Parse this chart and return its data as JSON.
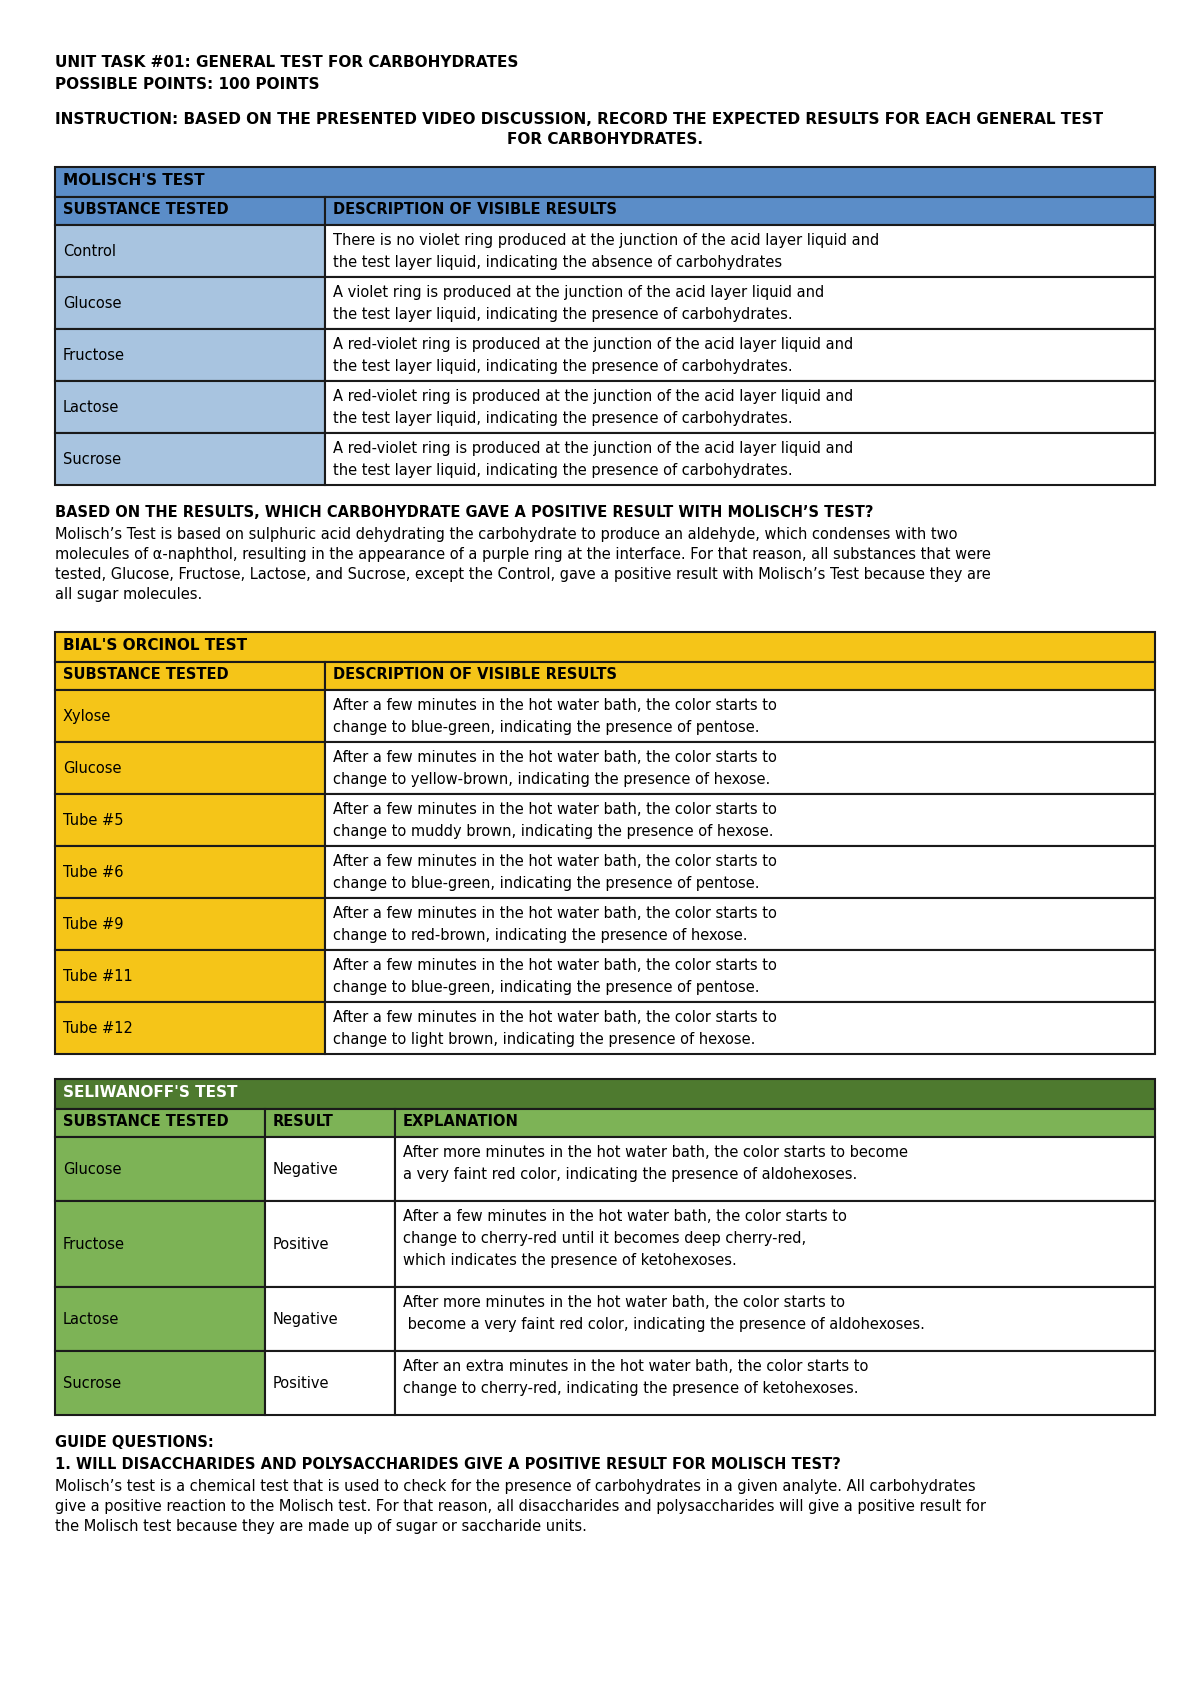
{
  "title1": "UNIT TASK #01: GENERAL TEST FOR CARBOHYDRATES",
  "title2": "POSSIBLE POINTS: 100 POINTS",
  "instruction_line1": "INSTRUCTION: BASED ON THE PRESENTED VIDEO DISCUSSION, RECORD THE EXPECTED RESULTS FOR EACH GENERAL TEST",
  "instruction_line2": "FOR CARBOHYDRATES.",
  "molisch_header": "MOLISCH'S TEST",
  "molisch_col1": "SUBSTANCE TESTED",
  "molisch_col2": "DESCRIPTION OF VISIBLE RESULTS",
  "molisch_header_color": "#5B8DC8",
  "molisch_subheader_color": "#5B8DC8",
  "molisch_row_color": "#A8C4E0",
  "molisch_rows": [
    [
      "Control",
      "There is no violet ring produced at the junction of the acid layer liquid and\nthe test layer liquid, indicating the absence of carbohydrates"
    ],
    [
      "Glucose",
      "A violet ring is produced at the junction of the acid layer liquid and\nthe test layer liquid, indicating the presence of carbohydrates."
    ],
    [
      "Fructose",
      "A red-violet ring is produced at the junction of the acid layer liquid and\nthe test layer liquid, indicating the presence of carbohydrates."
    ],
    [
      "Lactose",
      "A red-violet ring is produced at the junction of the acid layer liquid and\nthe test layer liquid, indicating the presence of carbohydrates."
    ],
    [
      "Sucrose",
      "A red-violet ring is produced at the junction of the acid layer liquid and\nthe test layer liquid, indicating the presence of carbohydrates."
    ]
  ],
  "molisch_question": "BASED ON THE RESULTS, WHICH CARBOHYDRATE GAVE A POSITIVE RESULT WITH MOLISCH’S TEST?",
  "molisch_answer_lines": [
    "Molisch’s Test is based on sulphuric acid dehydrating the carbohydrate to produce an aldehyde, which condenses with two",
    "molecules of α-naphthol, resulting in the appearance of a purple ring at the interface. For that reason, all substances that were",
    "tested, Glucose, Fructose, Lactose, and Sucrose, except the Control, gave a positive result with Molisch’s Test because they are",
    "all sugar molecules."
  ],
  "bial_header": "BIAL'S ORCINOL TEST",
  "bial_col1": "SUBSTANCE TESTED",
  "bial_col2": "DESCRIPTION OF VISIBLE RESULTS",
  "bial_header_color": "#F5C518",
  "bial_row_color": "#F5C518",
  "bial_rows": [
    [
      "Xylose",
      "After a few minutes in the hot water bath, the color starts to\nchange to blue-green, indicating the presence of pentose."
    ],
    [
      "Glucose",
      "After a few minutes in the hot water bath, the color starts to\nchange to yellow-brown, indicating the presence of hexose."
    ],
    [
      "Tube #5",
      "After a few minutes in the hot water bath, the color starts to\nchange to muddy brown, indicating the presence of hexose."
    ],
    [
      "Tube #6",
      "After a few minutes in the hot water bath, the color starts to\nchange to blue-green, indicating the presence of pentose."
    ],
    [
      "Tube #9",
      "After a few minutes in the hot water bath, the color starts to\nchange to red-brown, indicating the presence of hexose."
    ],
    [
      "Tube #11",
      "After a few minutes in the hot water bath, the color starts to\nchange to blue-green, indicating the presence of pentose."
    ],
    [
      "Tube #12",
      "After a few minutes in the hot water bath, the color starts to\nchange to light brown, indicating the presence of hexose."
    ]
  ],
  "seliwanoff_header": "SELIWANOFF'S TEST",
  "seliwanoff_col1": "SUBSTANCE TESTED",
  "seliwanoff_col2": "RESULT",
  "seliwanoff_col3": "EXPLANATION",
  "seliwanoff_header_color": "#4E7A2F",
  "seliwanoff_row_color": "#7DB356",
  "seliwanoff_rows": [
    [
      "Glucose",
      "Negative",
      "After more minutes in the hot water bath, the color starts to become\na very faint red color, indicating the presence of aldohexoses."
    ],
    [
      "Fructose",
      "Positive",
      "After a few minutes in the hot water bath, the color starts to\nchange to cherry-red until it becomes deep cherry-red,\nwhich indicates the presence of ketohexoses."
    ],
    [
      "Lactose",
      "Negative",
      "After more minutes in the hot water bath, the color starts to\n become a very faint red color, indicating the presence of aldohexoses."
    ],
    [
      "Sucrose",
      "Positive",
      "After an extra minutes in the hot water bath, the color starts to\nchange to cherry-red, indicating the presence of ketohexoses."
    ]
  ],
  "guide_title": "GUIDE QUESTIONS:",
  "guide_q1": "1. WILL DISACCHARIDES AND POLYSACCHARIDES GIVE A POSITIVE RESULT FOR MOLISCH TEST?",
  "guide_a1_lines": [
    "Molisch’s test is a chemical test that is used to check for the presence of carbohydrates in a given analyte. All carbohydrates",
    "give a positive reaction to the Molisch test. For that reason, all disaccharides and polysaccharides will give a positive result for",
    "the Molisch test because they are made up of sugar or saccharide units."
  ],
  "bg_color": "#FFFFFF"
}
